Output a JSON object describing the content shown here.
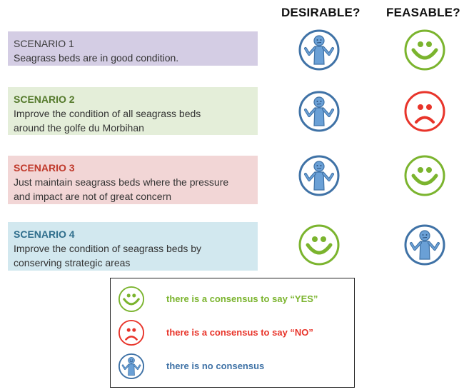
{
  "headers": {
    "desirable": "DESIRABLE?",
    "feasable": "FEASABLE?"
  },
  "scenarios": [
    {
      "title": "SCENARIO 1",
      "lines": [
        "Seagrass beds are in good condition."
      ],
      "desirable": "no-consensus-icon",
      "feasable": "yes-consensus-icon"
    },
    {
      "title": "SCENARIO 2",
      "lines": [
        "Improve the condition of all seagrass beds",
        "around the golfe du Morbihan"
      ],
      "desirable": "no-consensus-icon",
      "feasable": "no-consensus-no-icon"
    },
    {
      "title": "SCENARIO 3",
      "lines": [
        "Just maintain seagrass beds where the pressure",
        "and impact are not of great concern"
      ],
      "desirable": "no-consensus-icon",
      "feasable": "yes-consensus-icon"
    },
    {
      "title": "SCENARIO 4",
      "lines": [
        "Improve the condition of seagrass beds by",
        "conserving strategic areas"
      ],
      "desirable": "yes-consensus-icon",
      "feasable": "no-consensus-icon"
    }
  ],
  "legend": {
    "yes": "there is a consensus to say “YES”",
    "no": "there is a consensus to say “NO”",
    "none": "there is no consensus"
  },
  "colors": {
    "yes": "#7bb42e",
    "no": "#e8342a",
    "none": "#3f72a6",
    "none_fill": "#6aa0d6"
  }
}
